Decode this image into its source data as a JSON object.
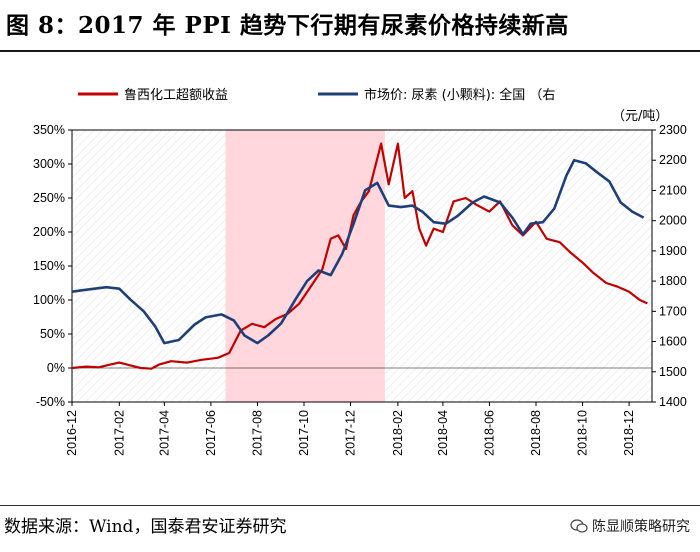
{
  "title": "图 8：2017 年 PPI 趋势下行期有尿素价格持续新高",
  "source": "数据来源：Wind，国泰君安证券研究",
  "watermark": "陈显顺策略研究",
  "watermark_icon": "wechat-icon",
  "colors": {
    "series1": "#c00000",
    "series2": "#1f3f7a",
    "shade": "#ffd7dc",
    "grid": "#bfbfbf"
  },
  "chart_data": {
    "type": "line",
    "legend": [
      "鲁西化工超额收益",
      "市场价: 尿素 (小颗料): 全国 （右"
    ],
    "right_unit": "（元/吨）",
    "x_ticks": [
      "2016-12",
      "2017-02",
      "2017-04",
      "2017-06",
      "2017-08",
      "2017-10",
      "2017-12",
      "2018-02",
      "2018-04",
      "2018-06",
      "2018-08",
      "2018-10",
      "2018-12"
    ],
    "y_left": {
      "min": -0.5,
      "max": 3.5,
      "ticks": [
        "-50%",
        "0%",
        "50%",
        "100%",
        "150%",
        "200%",
        "250%",
        "300%",
        "350%"
      ]
    },
    "y_right": {
      "min": 1400,
      "max": 2300,
      "ticks": [
        "1400",
        "1500",
        "1600",
        "1700",
        "1800",
        "1900",
        "2000",
        "2100",
        "2200",
        "2300"
      ]
    },
    "shaded_range": [
      "2017-06-20",
      "2018-01-15"
    ],
    "series": [
      {
        "name": "鲁西化工超额收益",
        "axis": "left",
        "points": [
          [
            "2016-12-01",
            0.0
          ],
          [
            "2016-12-20",
            0.02
          ],
          [
            "2017-01-05",
            0.01
          ],
          [
            "2017-01-20",
            0.05
          ],
          [
            "2017-02-01",
            0.08
          ],
          [
            "2017-02-15",
            0.04
          ],
          [
            "2017-03-01",
            0.0
          ],
          [
            "2017-03-15",
            -0.01
          ],
          [
            "2017-03-25",
            0.05
          ],
          [
            "2017-04-10",
            0.1
          ],
          [
            "2017-05-01",
            0.08
          ],
          [
            "2017-05-20",
            0.12
          ],
          [
            "2017-06-10",
            0.15
          ],
          [
            "2017-06-25",
            0.22
          ],
          [
            "2017-07-10",
            0.55
          ],
          [
            "2017-07-25",
            0.65
          ],
          [
            "2017-08-10",
            0.6
          ],
          [
            "2017-08-25",
            0.72
          ],
          [
            "2017-09-10",
            0.8
          ],
          [
            "2017-09-25",
            0.95
          ],
          [
            "2017-10-10",
            1.2
          ],
          [
            "2017-10-25",
            1.45
          ],
          [
            "2017-11-05",
            1.9
          ],
          [
            "2017-11-15",
            1.95
          ],
          [
            "2017-11-25",
            1.75
          ],
          [
            "2017-12-05",
            2.25
          ],
          [
            "2017-12-15",
            2.45
          ],
          [
            "2017-12-25",
            2.6
          ],
          [
            "2018-01-10",
            3.3
          ],
          [
            "2018-01-20",
            2.7
          ],
          [
            "2018-02-01",
            3.3
          ],
          [
            "2018-02-10",
            2.5
          ],
          [
            "2018-02-20",
            2.6
          ],
          [
            "2018-03-01",
            2.05
          ],
          [
            "2018-03-10",
            1.8
          ],
          [
            "2018-03-20",
            2.05
          ],
          [
            "2018-04-01",
            2.0
          ],
          [
            "2018-04-15",
            2.45
          ],
          [
            "2018-05-01",
            2.5
          ],
          [
            "2018-05-15",
            2.4
          ],
          [
            "2018-06-01",
            2.3
          ],
          [
            "2018-06-15",
            2.45
          ],
          [
            "2018-07-01",
            2.1
          ],
          [
            "2018-07-15",
            1.95
          ],
          [
            "2018-08-01",
            2.15
          ],
          [
            "2018-08-15",
            1.9
          ],
          [
            "2018-09-01",
            1.85
          ],
          [
            "2018-09-15",
            1.7
          ],
          [
            "2018-10-01",
            1.55
          ],
          [
            "2018-10-15",
            1.4
          ],
          [
            "2018-11-01",
            1.25
          ],
          [
            "2018-11-15",
            1.2
          ],
          [
            "2018-12-01",
            1.12
          ],
          [
            "2018-12-15",
            1.0
          ],
          [
            "2018-12-25",
            0.95
          ]
        ]
      },
      {
        "name": "市场价: 尿素 (小颗料): 全国 （右",
        "axis": "right",
        "points": [
          [
            "2016-12-01",
            1765
          ],
          [
            "2016-12-15",
            1770
          ],
          [
            "2017-01-15",
            1780
          ],
          [
            "2017-02-01",
            1775
          ],
          [
            "2017-02-15",
            1740
          ],
          [
            "2017-03-05",
            1700
          ],
          [
            "2017-03-20",
            1650
          ],
          [
            "2017-04-01",
            1595
          ],
          [
            "2017-04-20",
            1605
          ],
          [
            "2017-05-10",
            1655
          ],
          [
            "2017-05-25",
            1680
          ],
          [
            "2017-06-15",
            1690
          ],
          [
            "2017-07-01",
            1670
          ],
          [
            "2017-07-15",
            1620
          ],
          [
            "2017-08-01",
            1595
          ],
          [
            "2017-08-15",
            1620
          ],
          [
            "2017-09-01",
            1660
          ],
          [
            "2017-09-20",
            1740
          ],
          [
            "2017-10-05",
            1800
          ],
          [
            "2017-10-20",
            1835
          ],
          [
            "2017-11-05",
            1820
          ],
          [
            "2017-11-20",
            1890
          ],
          [
            "2017-12-05",
            1990
          ],
          [
            "2017-12-20",
            2100
          ],
          [
            "2018-01-05",
            2125
          ],
          [
            "2018-01-20",
            2050
          ],
          [
            "2018-02-05",
            2045
          ],
          [
            "2018-02-20",
            2050
          ],
          [
            "2018-03-05",
            2030
          ],
          [
            "2018-03-20",
            1995
          ],
          [
            "2018-04-05",
            1990
          ],
          [
            "2018-04-20",
            2015
          ],
          [
            "2018-05-10",
            2060
          ],
          [
            "2018-05-25",
            2080
          ],
          [
            "2018-06-15",
            2060
          ],
          [
            "2018-07-01",
            2010
          ],
          [
            "2018-07-15",
            1955
          ],
          [
            "2018-07-25",
            1990
          ],
          [
            "2018-08-10",
            1995
          ],
          [
            "2018-08-25",
            2040
          ],
          [
            "2018-09-10",
            2150
          ],
          [
            "2018-09-20",
            2200
          ],
          [
            "2018-10-05",
            2190
          ],
          [
            "2018-10-20",
            2160
          ],
          [
            "2018-11-05",
            2130
          ],
          [
            "2018-11-20",
            2060
          ],
          [
            "2018-12-05",
            2030
          ],
          [
            "2018-12-20",
            2010
          ]
        ]
      }
    ]
  }
}
